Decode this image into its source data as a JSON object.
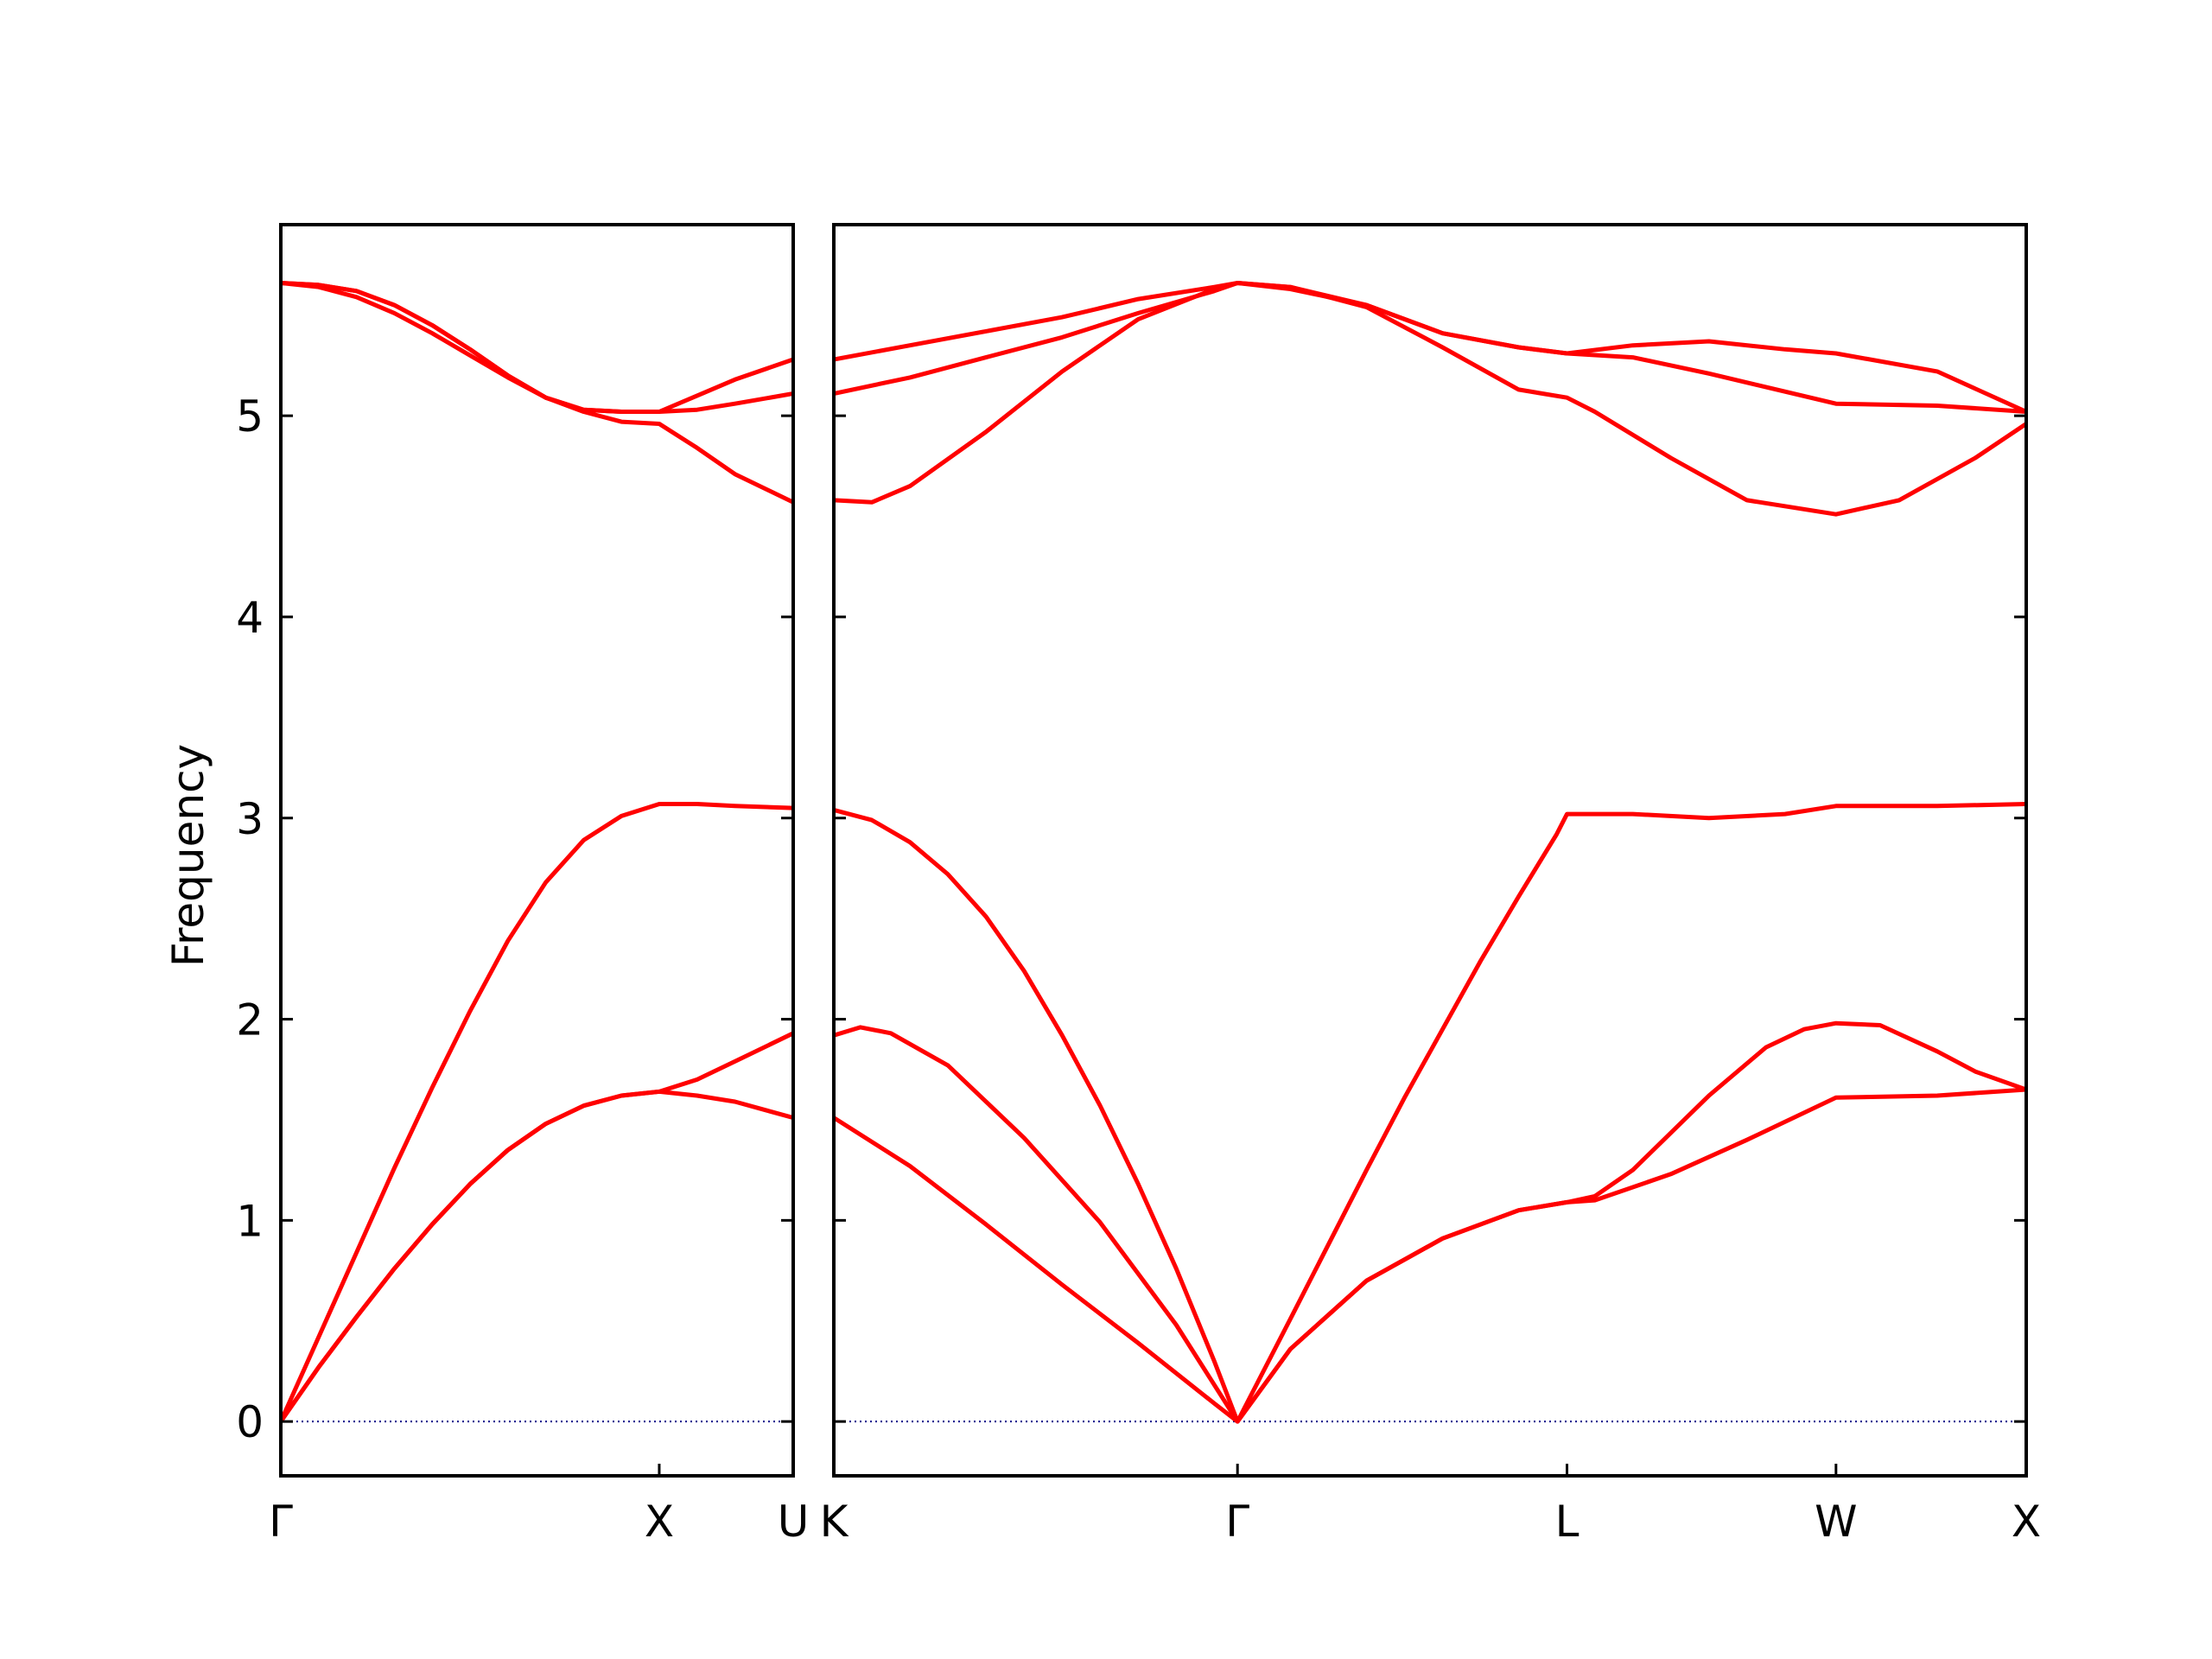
{
  "chart_data": {
    "type": "line",
    "ylabel": "Frequency",
    "ylim": [
      -0.27,
      5.95
    ],
    "y_ticks": [
      "0",
      "1",
      "2",
      "3",
      "4",
      "5"
    ],
    "grid": false,
    "zero_line": {
      "value": 0,
      "style": "dotted",
      "color": "#00008b"
    },
    "line_color": "#ff0000",
    "panels": [
      {
        "name": "Γ-X-U",
        "x_ticks": [
          {
            "label": "Γ",
            "x": 0
          },
          {
            "label": "X",
            "x": 1.0
          },
          {
            "label": "U",
            "x": 1.354
          }
        ],
        "xlim": [
          0,
          1.354
        ],
        "series": [
          {
            "points": [
              [
                0,
                0
              ],
              [
                0.1,
                0.42
              ],
              [
                0.2,
                0.84
              ],
              [
                0.3,
                1.26
              ],
              [
                0.4,
                1.66
              ],
              [
                0.5,
                2.04
              ],
              [
                0.6,
                2.39
              ],
              [
                0.7,
                2.68
              ],
              [
                0.8,
                2.89
              ],
              [
                0.9,
                3.01
              ],
              [
                1.0,
                3.07
              ],
              [
                1.1,
                3.07
              ],
              [
                1.2,
                3.06
              ],
              [
                1.354,
                3.05
              ]
            ]
          },
          {
            "points": [
              [
                0,
                0
              ],
              [
                0.1,
                0.27
              ],
              [
                0.2,
                0.52
              ],
              [
                0.3,
                0.76
              ],
              [
                0.4,
                0.98
              ],
              [
                0.5,
                1.18
              ],
              [
                0.6,
                1.35
              ],
              [
                0.7,
                1.48
              ],
              [
                0.8,
                1.57
              ],
              [
                0.9,
                1.62
              ],
              [
                1.0,
                1.64
              ],
              [
                1.1,
                1.62
              ],
              [
                1.2,
                1.59
              ],
              [
                1.354,
                1.51
              ]
            ]
          },
          {
            "points": [
              [
                0,
                0
              ],
              [
                0.1,
                0.27
              ],
              [
                0.2,
                0.52
              ],
              [
                0.3,
                0.76
              ],
              [
                0.4,
                0.98
              ],
              [
                0.5,
                1.18
              ],
              [
                0.6,
                1.35
              ],
              [
                0.7,
                1.48
              ],
              [
                0.8,
                1.57
              ],
              [
                0.9,
                1.62
              ],
              [
                1.0,
                1.64
              ],
              [
                1.1,
                1.7
              ],
              [
                1.2,
                1.79
              ],
              [
                1.354,
                1.93
              ]
            ]
          },
          {
            "points": [
              [
                0,
                5.66
              ],
              [
                0.1,
                5.64
              ],
              [
                0.2,
                5.59
              ],
              [
                0.3,
                5.51
              ],
              [
                0.4,
                5.41
              ],
              [
                0.5,
                5.3
              ],
              [
                0.6,
                5.19
              ],
              [
                0.7,
                5.09
              ],
              [
                0.8,
                5.02
              ],
              [
                0.9,
                4.97
              ],
              [
                1.0,
                4.96
              ],
              [
                1.1,
                4.84
              ],
              [
                1.2,
                4.71
              ],
              [
                1.354,
                4.57
              ]
            ]
          },
          {
            "points": [
              [
                0,
                5.66
              ],
              [
                0.1,
                5.65
              ],
              [
                0.2,
                5.62
              ],
              [
                0.3,
                5.55
              ],
              [
                0.4,
                5.45
              ],
              [
                0.5,
                5.33
              ],
              [
                0.6,
                5.2
              ],
              [
                0.7,
                5.09
              ],
              [
                0.8,
                5.03
              ],
              [
                0.9,
                5.02
              ],
              [
                1.0,
                5.02
              ],
              [
                1.1,
                5.03
              ],
              [
                1.2,
                5.06
              ],
              [
                1.354,
                5.11
              ]
            ]
          },
          {
            "points": [
              [
                0,
                5.66
              ],
              [
                0.1,
                5.65
              ],
              [
                0.2,
                5.62
              ],
              [
                0.3,
                5.55
              ],
              [
                0.4,
                5.45
              ],
              [
                0.5,
                5.33
              ],
              [
                0.6,
                5.2
              ],
              [
                0.7,
                5.09
              ],
              [
                0.8,
                5.03
              ],
              [
                0.9,
                5.02
              ],
              [
                1.0,
                5.02
              ],
              [
                1.1,
                5.1
              ],
              [
                1.2,
                5.18
              ],
              [
                1.354,
                5.28
              ]
            ]
          }
        ]
      },
      {
        "name": "K-Γ-L-W-X",
        "x_ticks": [
          {
            "label": "K",
            "x": 0
          },
          {
            "label": "Γ",
            "x": 1.061
          },
          {
            "label": "L",
            "x": 1.927
          },
          {
            "label": "W",
            "x": 2.634
          },
          {
            "label": "X",
            "x": 3.134
          }
        ],
        "xlim": [
          0,
          3.134
        ],
        "series": [
          {
            "points": [
              [
                0,
                3.04
              ],
              [
                0.1,
                2.99
              ],
              [
                0.2,
                2.88
              ],
              [
                0.3,
                2.72
              ],
              [
                0.4,
                2.51
              ],
              [
                0.5,
                2.24
              ],
              [
                0.6,
                1.92
              ],
              [
                0.7,
                1.57
              ],
              [
                0.8,
                1.18
              ],
              [
                0.9,
                0.76
              ],
              [
                1.0,
                0.3
              ],
              [
                1.061,
                0
              ],
              [
                1.2,
                0.51
              ],
              [
                1.3,
                0.88
              ],
              [
                1.4,
                1.25
              ],
              [
                1.5,
                1.61
              ],
              [
                1.6,
                1.95
              ],
              [
                1.7,
                2.29
              ],
              [
                1.8,
                2.61
              ],
              [
                1.9,
                2.92
              ],
              [
                1.927,
                3.02
              ],
              [
                2.1,
                3.02
              ],
              [
                2.3,
                3.0
              ],
              [
                2.5,
                3.02
              ],
              [
                2.634,
                3.06
              ],
              [
                2.9,
                3.06
              ],
              [
                3.134,
                3.07
              ]
            ]
          },
          {
            "points": [
              [
                0,
                1.92
              ],
              [
                0.07,
                1.96
              ],
              [
                0.15,
                1.93
              ],
              [
                0.3,
                1.77
              ],
              [
                0.5,
                1.41
              ],
              [
                0.7,
                0.99
              ],
              [
                0.9,
                0.48
              ],
              [
                1.061,
                0
              ],
              [
                1.2,
                0.36
              ],
              [
                1.4,
                0.7
              ],
              [
                1.6,
                0.91
              ],
              [
                1.8,
                1.05
              ],
              [
                1.927,
                1.09
              ],
              [
                2.0,
                1.12
              ],
              [
                2.1,
                1.25
              ],
              [
                2.3,
                1.62
              ],
              [
                2.45,
                1.86
              ],
              [
                2.55,
                1.95
              ],
              [
                2.634,
                1.98
              ],
              [
                2.75,
                1.97
              ],
              [
                2.9,
                1.84
              ],
              [
                3.0,
                1.74
              ],
              [
                3.134,
                1.65
              ]
            ]
          },
          {
            "points": [
              [
                0,
                1.51
              ],
              [
                0.2,
                1.27
              ],
              [
                0.4,
                0.98
              ],
              [
                0.6,
                0.68
              ],
              [
                0.8,
                0.39
              ],
              [
                1.0,
                0.09
              ],
              [
                1.061,
                0
              ],
              [
                1.2,
                0.36
              ],
              [
                1.4,
                0.7
              ],
              [
                1.6,
                0.91
              ],
              [
                1.8,
                1.05
              ],
              [
                1.927,
                1.09
              ],
              [
                2.0,
                1.1
              ],
              [
                2.2,
                1.23
              ],
              [
                2.4,
                1.4
              ],
              [
                2.634,
                1.61
              ],
              [
                2.9,
                1.62
              ],
              [
                3.134,
                1.65
              ]
            ]
          },
          {
            "points": [
              [
                0,
                5.11
              ],
              [
                0.2,
                5.19
              ],
              [
                0.4,
                5.29
              ],
              [
                0.6,
                5.39
              ],
              [
                0.8,
                5.51
              ],
              [
                1.0,
                5.62
              ],
              [
                1.061,
                5.66
              ],
              [
                1.2,
                5.63
              ],
              [
                1.4,
                5.55
              ],
              [
                1.6,
                5.41
              ],
              [
                1.8,
                5.34
              ],
              [
                1.927,
                5.31
              ],
              [
                2.1,
                5.29
              ],
              [
                2.3,
                5.21
              ],
              [
                2.5,
                5.12
              ],
              [
                2.634,
                5.06
              ],
              [
                2.9,
                5.05
              ],
              [
                3.134,
                5.02
              ]
            ]
          },
          {
            "points": [
              [
                0,
                5.28
              ],
              [
                0.2,
                5.35
              ],
              [
                0.4,
                5.42
              ],
              [
                0.6,
                5.49
              ],
              [
                0.8,
                5.58
              ],
              [
                1.0,
                5.64
              ],
              [
                1.061,
                5.66
              ],
              [
                1.2,
                5.64
              ],
              [
                1.4,
                5.55
              ],
              [
                1.6,
                5.41
              ],
              [
                1.8,
                5.34
              ],
              [
                1.927,
                5.31
              ],
              [
                2.1,
                5.35
              ],
              [
                2.3,
                5.37
              ],
              [
                2.5,
                5.33
              ],
              [
                2.634,
                5.31
              ],
              [
                2.9,
                5.22
              ],
              [
                3.134,
                5.02
              ]
            ]
          },
          {
            "points": [
              [
                0,
                4.58
              ],
              [
                0.1,
                4.57
              ],
              [
                0.2,
                4.65
              ],
              [
                0.4,
                4.92
              ],
              [
                0.6,
                5.22
              ],
              [
                0.8,
                5.48
              ],
              [
                1.0,
                5.63
              ],
              [
                1.061,
                5.66
              ],
              [
                1.2,
                5.64
              ],
              [
                1.4,
                5.54
              ],
              [
                1.6,
                5.34
              ],
              [
                1.8,
                5.13
              ],
              [
                1.927,
                5.09
              ],
              [
                2.0,
                5.02
              ],
              [
                2.2,
                4.79
              ],
              [
                2.4,
                4.58
              ],
              [
                2.634,
                4.51
              ],
              [
                2.8,
                4.58
              ],
              [
                3.0,
                4.79
              ],
              [
                3.134,
                4.96
              ]
            ]
          }
        ]
      }
    ]
  }
}
